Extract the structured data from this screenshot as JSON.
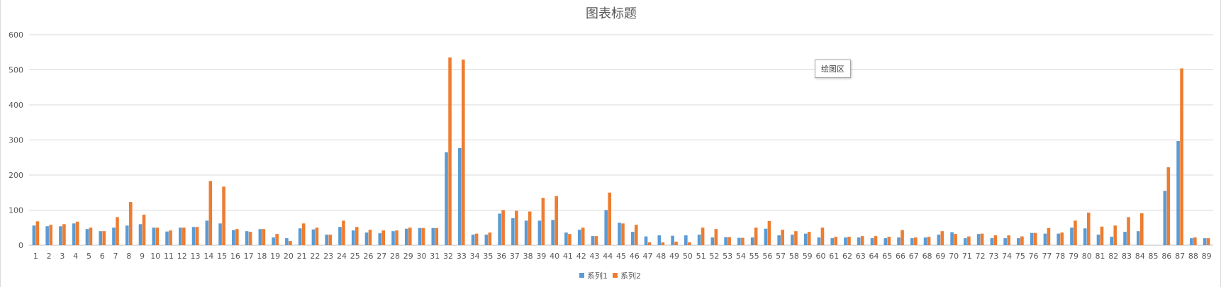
{
  "chart_data": {
    "type": "bar",
    "title": "图表标题",
    "xlabel": "",
    "ylabel": "",
    "ylim": [
      0,
      600
    ],
    "yticks": [
      0,
      100,
      200,
      300,
      400,
      500,
      600
    ],
    "grid": true,
    "legend_position": "bottom",
    "categories": [
      "1",
      "2",
      "3",
      "4",
      "5",
      "6",
      "7",
      "8",
      "9",
      "10",
      "11",
      "12",
      "13",
      "14",
      "15",
      "16",
      "17",
      "18",
      "19",
      "20",
      "21",
      "22",
      "23",
      "24",
      "25",
      "26",
      "27",
      "28",
      "29",
      "30",
      "31",
      "32",
      "33",
      "34",
      "35",
      "36",
      "37",
      "38",
      "39",
      "40",
      "41",
      "42",
      "43",
      "44",
      "45",
      "46",
      "47",
      "48",
      "49",
      "50",
      "51",
      "52",
      "53",
      "54",
      "55",
      "56",
      "57",
      "58",
      "59",
      "60",
      "61",
      "62",
      "63",
      "64",
      "65",
      "66",
      "67",
      "68",
      "69",
      "70",
      "71",
      "72",
      "73",
      "74",
      "75",
      "76",
      "77",
      "78",
      "79",
      "80",
      "81",
      "82",
      "83",
      "84",
      "85",
      "86",
      "87",
      "88",
      "89"
    ],
    "series": [
      {
        "name": "系列1",
        "color": "#5b9bd5",
        "values": [
          56,
          54,
          54,
          62,
          46,
          40,
          50,
          56,
          60,
          50,
          39,
          50,
          52,
          70,
          62,
          43,
          40,
          46,
          22,
          20,
          48,
          45,
          30,
          52,
          42,
          36,
          34,
          40,
          47,
          49,
          49,
          265,
          277,
          30,
          30,
          90,
          77,
          70,
          70,
          72,
          36,
          44,
          26,
          100,
          64,
          38,
          25,
          28,
          27,
          28,
          30,
          22,
          23,
          21,
          22,
          47,
          28,
          30,
          33,
          22,
          20,
          22,
          22,
          20,
          20,
          22,
          20,
          22,
          30,
          37,
          20,
          32,
          20,
          20,
          20,
          35,
          33,
          33,
          50,
          48,
          30,
          24,
          38,
          40,
          0,
          155,
          297,
          20,
          20
        ]
      },
      {
        "name": "系列2",
        "color": "#ed7d31",
        "values": [
          68,
          58,
          60,
          67,
          50,
          40,
          80,
          123,
          87,
          50,
          42,
          50,
          52,
          183,
          167,
          46,
          38,
          46,
          32,
          12,
          62,
          50,
          30,
          70,
          52,
          44,
          42,
          42,
          50,
          49,
          49,
          535,
          529,
          33,
          36,
          100,
          98,
          96,
          135,
          140,
          32,
          50,
          26,
          150,
          62,
          58,
          8,
          8,
          10,
          8,
          50,
          46,
          23,
          21,
          50,
          69,
          44,
          40,
          38,
          50,
          24,
          24,
          26,
          26,
          24,
          43,
          22,
          24,
          40,
          32,
          25,
          33,
          28,
          28,
          25,
          35,
          49,
          36,
          70,
          93,
          53,
          56,
          80,
          91,
          0,
          222,
          504,
          22,
          20
        ]
      }
    ]
  },
  "plot_area_label": "绘图区"
}
